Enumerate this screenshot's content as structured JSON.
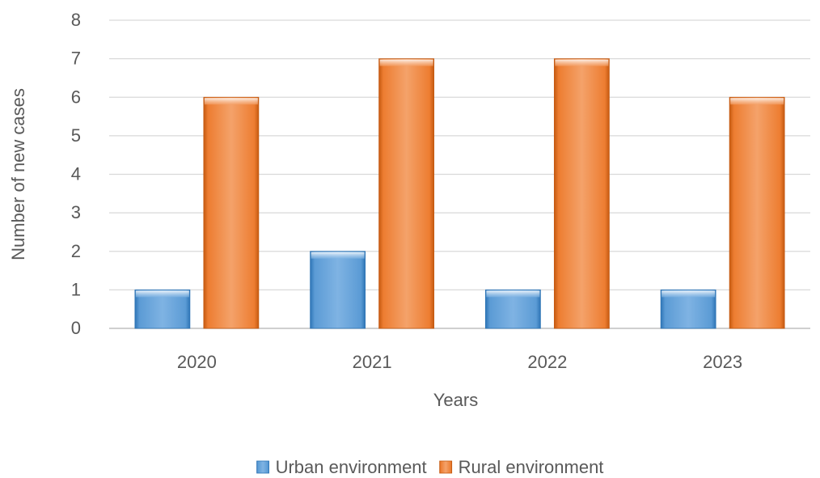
{
  "chart_data": {
    "type": "bar",
    "categories": [
      "2020",
      "2021",
      "2022",
      "2023"
    ],
    "series": [
      {
        "name": "Urban environment",
        "values": [
          1,
          2,
          1,
          1
        ],
        "color": "#5B9BD5"
      },
      {
        "name": "Rural environment",
        "values": [
          6,
          7,
          7,
          6
        ],
        "color": "#ED7D31"
      }
    ],
    "xlabel": "Years",
    "ylabel": "Number of new cases",
    "ylim": [
      0,
      8
    ],
    "yticks": [
      "0",
      "1",
      "2",
      "3",
      "4",
      "5",
      "6",
      "7",
      "8"
    ],
    "grid": true,
    "legend_position": "bottom"
  }
}
